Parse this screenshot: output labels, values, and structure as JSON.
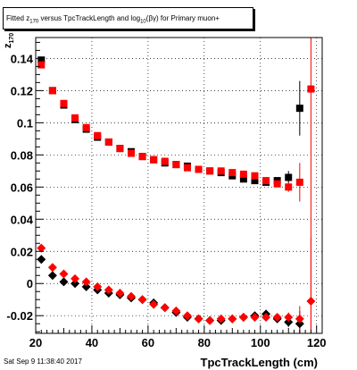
{
  "title": {
    "prefix": "Fitted  z",
    "sub1": "170",
    "mid": " versus TpcTrackLength and log",
    "sub2": "10",
    "suffix": "(βγ) for Primary muon+"
  },
  "footer": "Sat Sep  9 11:38:40 2017",
  "chart_data": {
    "type": "scatter",
    "title": "Fitted z170 versus TpcTrackLength and log10(βγ) for Primary muon+",
    "xlabel": "TpcTrackLength (cm)",
    "ylabel": "z170",
    "xlim": [
      20,
      122
    ],
    "ylim": [
      -0.031,
      0.153
    ],
    "x_ticks": [
      20,
      40,
      60,
      80,
      100,
      120
    ],
    "y_ticks": [
      -0.02,
      0,
      0.02,
      0.04,
      0.06,
      0.08,
      0.1,
      0.12,
      0.14
    ],
    "y_tick_labels": [
      "-0.02",
      "0",
      "0.02",
      "0.04",
      "0.06",
      "0.08",
      "0.1",
      "0.12",
      "0.14"
    ],
    "grid": true,
    "series": [
      {
        "marker": "square",
        "color": "#000000",
        "x": [
          22,
          26,
          30,
          34,
          38,
          42,
          46,
          50,
          54,
          58,
          62,
          66,
          70,
          74,
          78,
          82,
          86,
          90,
          94,
          98,
          102,
          106,
          110,
          114
        ],
        "y": [
          0.139,
          0.12,
          0.111,
          0.102,
          0.096,
          0.091,
          0.088,
          0.084,
          0.082,
          0.079,
          0.077,
          0.075,
          0.074,
          0.073,
          0.071,
          0.07,
          0.069,
          0.067,
          0.065,
          0.064,
          0.063,
          0.064,
          0.066,
          0.109
        ],
        "err": [
          0.002,
          0.001,
          0.001,
          0.001,
          0.001,
          0.001,
          0.001,
          0.001,
          0.001,
          0.001,
          0.001,
          0.001,
          0.001,
          0.001,
          0.001,
          0.001,
          0.001,
          0.001,
          0.001,
          0.001,
          0.002,
          0.002,
          0.004,
          0.017
        ]
      },
      {
        "marker": "square",
        "color": "#ff0000",
        "x": [
          22,
          26,
          30,
          34,
          38,
          42,
          46,
          50,
          54,
          58,
          62,
          66,
          70,
          74,
          78,
          82,
          86,
          90,
          94,
          98,
          102,
          106,
          110,
          114,
          118
        ],
        "y": [
          0.136,
          0.12,
          0.112,
          0.103,
          0.097,
          0.092,
          0.088,
          0.084,
          0.081,
          0.079,
          0.077,
          0.076,
          0.074,
          0.072,
          0.071,
          0.07,
          0.07,
          0.069,
          0.068,
          0.067,
          0.064,
          0.062,
          0.06,
          0.063,
          0.121
        ],
        "err": [
          0.002,
          0.001,
          0.001,
          0.001,
          0.001,
          0.001,
          0.001,
          0.001,
          0.001,
          0.001,
          0.001,
          0.001,
          0.001,
          0.001,
          0.001,
          0.001,
          0.001,
          0.001,
          0.001,
          0.001,
          0.002,
          0.002,
          0.003,
          0.012,
          0.15
        ]
      },
      {
        "marker": "diamond",
        "color": "#000000",
        "x": [
          22,
          26,
          30,
          34,
          38,
          42,
          46,
          50,
          54,
          58,
          62,
          66,
          70,
          74,
          78,
          82,
          86,
          90,
          94,
          98,
          102,
          106,
          110,
          114
        ],
        "y": [
          0.015,
          0.005,
          0.001,
          0.0,
          -0.002,
          -0.004,
          -0.006,
          -0.007,
          -0.009,
          -0.01,
          -0.012,
          -0.015,
          -0.018,
          -0.021,
          -0.022,
          -0.023,
          -0.023,
          -0.022,
          -0.021,
          -0.02,
          -0.019,
          -0.022,
          -0.024,
          -0.025
        ],
        "err": [
          0.001,
          0.001,
          0.001,
          0.001,
          0.001,
          0.001,
          0.001,
          0.001,
          0.001,
          0.001,
          0.001,
          0.001,
          0.001,
          0.001,
          0.001,
          0.001,
          0.001,
          0.001,
          0.001,
          0.001,
          0.002,
          0.002,
          0.003,
          0.008
        ]
      },
      {
        "marker": "diamond",
        "color": "#ff0000",
        "x": [
          22,
          26,
          30,
          34,
          38,
          42,
          46,
          50,
          54,
          58,
          62,
          66,
          70,
          74,
          78,
          82,
          86,
          90,
          94,
          98,
          102,
          106,
          110,
          114,
          118
        ],
        "y": [
          0.022,
          0.01,
          0.006,
          0.003,
          0.001,
          -0.002,
          -0.004,
          -0.006,
          -0.008,
          -0.01,
          -0.013,
          -0.015,
          -0.017,
          -0.02,
          -0.022,
          -0.023,
          -0.022,
          -0.022,
          -0.021,
          -0.021,
          -0.021,
          -0.021,
          -0.021,
          -0.022,
          -0.011
        ],
        "err": [
          0.001,
          0.001,
          0.001,
          0.001,
          0.001,
          0.001,
          0.001,
          0.001,
          0.001,
          0.001,
          0.001,
          0.001,
          0.001,
          0.001,
          0.001,
          0.001,
          0.001,
          0.001,
          0.001,
          0.001,
          0.002,
          0.002,
          0.003,
          0.008,
          0.04
        ]
      }
    ]
  }
}
